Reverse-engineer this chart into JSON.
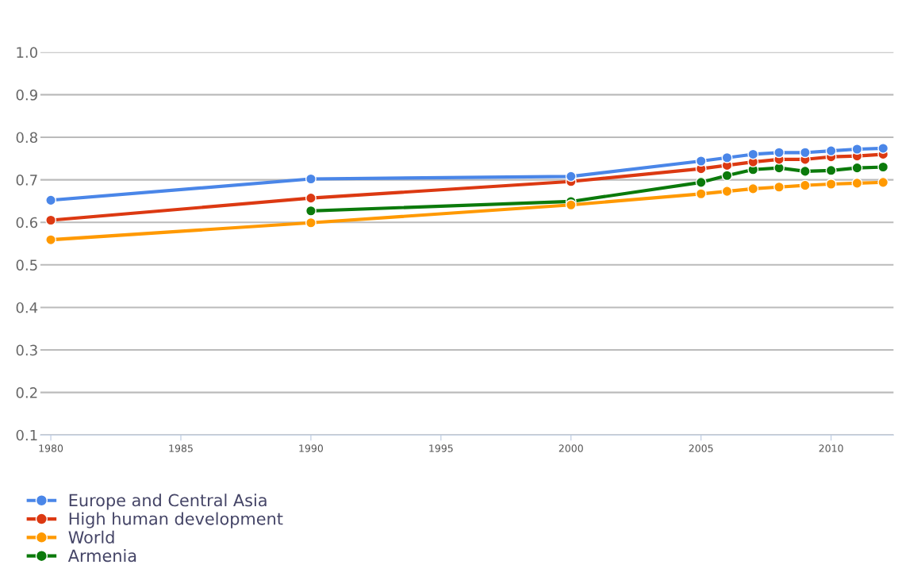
{
  "chart_data": {
    "type": "line",
    "x": [
      1980,
      1990,
      2000,
      2005,
      2006,
      2007,
      2008,
      2009,
      2010,
      2011,
      2012
    ],
    "series": [
      {
        "name": "Europe and Central Asia",
        "color": "#4a86e8",
        "values": [
          0.652,
          0.702,
          0.708,
          0.744,
          0.752,
          0.76,
          0.764,
          0.764,
          0.768,
          0.772,
          0.774
        ]
      },
      {
        "name": "High human development",
        "color": "#dc3912",
        "values": [
          0.605,
          0.657,
          0.696,
          0.726,
          0.734,
          0.742,
          0.748,
          0.748,
          0.754,
          0.756,
          0.76
        ]
      },
      {
        "name": "World",
        "color": "#ff9900",
        "values": [
          0.559,
          0.599,
          0.641,
          0.667,
          0.673,
          0.679,
          0.683,
          0.687,
          0.69,
          0.692,
          0.694
        ]
      },
      {
        "name": "Armenia",
        "color": "#0b7a0b",
        "values": [
          null,
          0.627,
          0.649,
          0.694,
          0.71,
          0.724,
          0.728,
          0.72,
          0.722,
          0.728,
          0.73
        ]
      }
    ],
    "xlim": [
      1979.6,
      2012.4
    ],
    "ylim": [
      0.1,
      1.0
    ],
    "xticks": [
      1980,
      1985,
      1990,
      1995,
      2000,
      2005,
      2010
    ],
    "yticks": [
      {
        "value": 0.1,
        "label": "0.1"
      },
      {
        "value": 0.2,
        "label": "0.2"
      },
      {
        "value": 0.3,
        "label": "0.3"
      },
      {
        "value": 0.4,
        "label": "0.4"
      },
      {
        "value": 0.5,
        "label": "0.5"
      },
      {
        "value": 0.6,
        "label": "0.6"
      },
      {
        "value": 0.7,
        "label": "0.7"
      },
      {
        "value": 0.8,
        "label": "0.8"
      },
      {
        "value": 0.9,
        "label": "0.9"
      },
      {
        "value": 1.0,
        "label": "1.0"
      }
    ],
    "grid": "y",
    "legend": "bottom left",
    "marker": "circle",
    "line_style": "solid"
  }
}
